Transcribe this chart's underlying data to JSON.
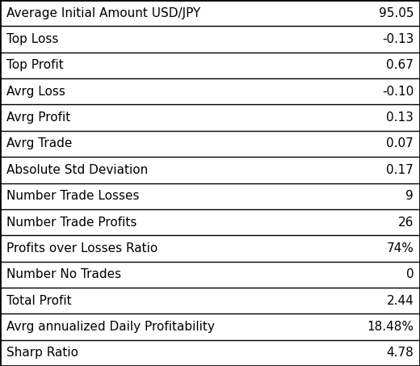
{
  "rows": [
    [
      "Average Initial Amount USD/JPY",
      "95.05"
    ],
    [
      "Top Loss",
      "-0.13"
    ],
    [
      "Top Profit",
      "0.67"
    ],
    [
      "Avrg Loss",
      "-0.10"
    ],
    [
      "Avrg Profit",
      "0.13"
    ],
    [
      "Avrg Trade",
      "0.07"
    ],
    [
      "Absolute Std Deviation",
      "0.17"
    ],
    [
      "Number Trade Losses",
      "9"
    ],
    [
      "Number Trade Profits",
      "26"
    ],
    [
      "Profits over Losses Ratio",
      "74%"
    ],
    [
      "Number No Trades",
      "0"
    ],
    [
      "Total Profit",
      "2.44"
    ],
    [
      "Avrg annualized Daily Profitability",
      "18.48%"
    ],
    [
      "Sharp Ratio",
      "4.78"
    ]
  ],
  "bg_color": "#ffffff",
  "border_color": "#000000",
  "text_color": "#000000",
  "font_size": 11.0,
  "fig_width": 5.2,
  "fig_height": 4.53
}
